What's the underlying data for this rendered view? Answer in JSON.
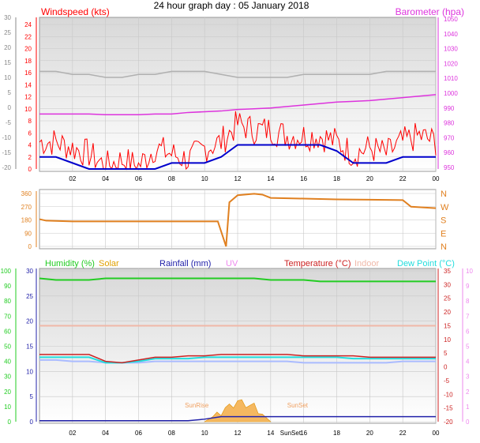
{
  "title": "24 hour graph day : 05 January 2018",
  "colors": {
    "wind": "#ff0000",
    "avg_wind": "#0000cc",
    "baro": "#dd33dd",
    "baro_left": "#888888",
    "wind_axis": "#ff0000",
    "dir": "#e08020",
    "humidity": "#22cc22",
    "solar": "#e0a000",
    "rain": "#2222aa",
    "uv": "#ee88ee",
    "temp": "#cc2222",
    "indoor": "#f0b8a8",
    "dew": "#22dddd",
    "cyan_line": "#aabbff",
    "grid": "#c8c8c8"
  },
  "x_labels": [
    "02",
    "04",
    "06",
    "08",
    "10",
    "12",
    "14",
    "16",
    "18",
    "20",
    "22",
    "00"
  ],
  "panel1": {
    "wind_label": "Windspeed (kts)",
    "baro_label": "Barometer (hpa)",
    "left_baro_ticks": [
      "30",
      "25",
      "20",
      "15",
      "10",
      "5",
      "0",
      "-5",
      "-10",
      "-15",
      "-20"
    ],
    "wind_ticks": [
      "24",
      "22",
      "20",
      "18",
      "16",
      "14",
      "12",
      "10",
      "8",
      "6",
      "4",
      "2",
      "0"
    ],
    "baro_ticks": [
      "1050",
      "1040",
      "1030",
      "1020",
      "1010",
      "1000",
      "990",
      "980",
      "970",
      "960",
      "950"
    ]
  },
  "panel2": {
    "left_ticks": [
      "360",
      "270",
      "180",
      "90",
      "0"
    ],
    "right_ticks": [
      "N",
      "W",
      "S",
      "E",
      "N"
    ]
  },
  "panel3": {
    "legend": {
      "humidity": "Humidity (%)",
      "solar": "Solar",
      "rain": "Rainfall (mm)",
      "uv": "UV",
      "temp": "Temperature (°C)",
      "indoor": "Indoor",
      "dew": "Dew Point (°C)"
    },
    "hum_ticks": [
      "100",
      "90",
      "80",
      "70",
      "60",
      "50",
      "40",
      "30",
      "20",
      "10",
      "0"
    ],
    "rain_ticks": [
      "30",
      "25",
      "20",
      "15",
      "10",
      "5",
      "0"
    ],
    "temp_ticks": [
      "35",
      "30",
      "25",
      "20",
      "15",
      "10",
      "5",
      "0",
      "-5",
      "-10",
      "-15",
      "-20"
    ],
    "uv_ticks": [
      "10",
      "9",
      "8",
      "7",
      "6",
      "5",
      "4",
      "3",
      "2",
      "1",
      "0"
    ],
    "sunrise": "SunRise",
    "sunset": "SunSet",
    "sunset_axis": "SunSet"
  },
  "chart_data": [
    {
      "type": "line",
      "title": "24 hour graph day : 05 January 2018",
      "ylabel": "Windspeed (kts)",
      "y2label": "Barometer (hpa)",
      "ylim": [
        0,
        25
      ],
      "y2lim": [
        950,
        1050
      ],
      "x": [
        0,
        1,
        2,
        3,
        4,
        5,
        6,
        7,
        8,
        9,
        10,
        11,
        12,
        13,
        14,
        15,
        16,
        17,
        18,
        19,
        20,
        21,
        22,
        23,
        24
      ],
      "series": [
        {
          "name": "Windspeed (kts)",
          "values": [
            4,
            4,
            3,
            2,
            0,
            1,
            0,
            3,
            2,
            1,
            3,
            4,
            7,
            6,
            6,
            5,
            5,
            5,
            4,
            2,
            3,
            2,
            4,
            5,
            4
          ]
        },
        {
          "name": "Barometer (hpa)",
          "values": [
            986,
            986,
            986,
            986,
            985.5,
            985.5,
            985.5,
            986,
            986,
            987,
            987.5,
            988,
            989,
            989.5,
            990,
            991,
            992,
            993,
            994,
            994.5,
            995,
            996,
            997,
            998,
            999
          ]
        }
      ],
      "extra_lines": {
        "avg_wind": [
          2,
          2,
          1,
          0,
          0,
          0,
          0,
          0,
          1,
          1,
          1,
          2,
          4,
          4,
          4,
          4,
          4,
          4,
          3,
          1,
          1,
          1,
          2,
          2,
          2
        ],
        "left_axis_grey": [
          12,
          12,
          11,
          11,
          10,
          10,
          11,
          11,
          12,
          12,
          12,
          11,
          10,
          10,
          10,
          10,
          11,
          11,
          11,
          11,
          11,
          12,
          12,
          12,
          12
        ]
      }
    },
    {
      "type": "line",
      "ylabel": "Wind direction",
      "ylim": [
        0,
        360
      ],
      "x": [
        0,
        0.4,
        2,
        4,
        6,
        8,
        10,
        10.8,
        11.3,
        11.5,
        12,
        13,
        13.5,
        14,
        16,
        18,
        20,
        22,
        22.5,
        24
      ],
      "series": [
        {
          "values": [
            185,
            175,
            170,
            170,
            170,
            170,
            170,
            170,
            0,
            300,
            348,
            358,
            352,
            330,
            325,
            320,
            318,
            315,
            270,
            260
          ]
        }
      ]
    },
    {
      "type": "line",
      "x": [
        0,
        1,
        2,
        3,
        4,
        5,
        6,
        7,
        8,
        9,
        10,
        11,
        12,
        13,
        14,
        15,
        16,
        17,
        18,
        19,
        20,
        21,
        22,
        23,
        24
      ],
      "series": [
        {
          "name": "Humidity (%)",
          "values": [
            95,
            94,
            94,
            94,
            95,
            95,
            95,
            95,
            95,
            95,
            95,
            95,
            95,
            95,
            94,
            94,
            94,
            93,
            93,
            93,
            93,
            93,
            93,
            93,
            93
          ]
        },
        {
          "name": "Temperature (°C)",
          "values": [
            4.5,
            4.5,
            4.5,
            4.5,
            2,
            1.5,
            2.5,
            3.5,
            3.5,
            4,
            4,
            4.5,
            4.5,
            4.5,
            4.5,
            4.5,
            4,
            4,
            4,
            4,
            3.5,
            3.5,
            3.5,
            3.5,
            3.5
          ]
        },
        {
          "name": "Dew Point (°C)",
          "values": [
            3.5,
            3.5,
            3.5,
            3.5,
            1.5,
            1.5,
            2,
            3,
            3,
            3,
            3.5,
            3.5,
            3.5,
            3.5,
            3.5,
            3.5,
            3.5,
            3.5,
            3.5,
            3,
            3,
            3,
            3,
            3,
            3
          ]
        },
        {
          "name": "Indoor",
          "values": [
            15,
            15,
            15,
            15,
            15,
            15,
            15,
            15,
            15,
            15,
            15,
            15,
            15,
            15,
            15,
            15,
            15,
            15,
            15,
            15,
            15,
            15,
            15,
            15,
            15
          ]
        },
        {
          "name": "Rainfall (mm)",
          "values": [
            0.2,
            0.2,
            0.2,
            0.2,
            0.2,
            0.2,
            0.2,
            0.2,
            0.2,
            0.2,
            0.5,
            1,
            1,
            1,
            1,
            1,
            1,
            1,
            1,
            1,
            1,
            1,
            1,
            1,
            1
          ]
        },
        {
          "name": "Solar",
          "values": [
            0,
            0,
            0,
            0,
            0,
            0,
            0,
            0,
            0,
            0,
            0,
            2,
            4,
            3,
            0,
            0,
            0,
            0,
            0,
            0,
            0,
            0,
            0,
            0,
            0
          ]
        }
      ],
      "extra_lines": {
        "light_blue": [
          2.5,
          2.5,
          2,
          2,
          1.5,
          1.5,
          1.5,
          2,
          2,
          2,
          2,
          2,
          2,
          2,
          2,
          2,
          1.5,
          1.5,
          1.5,
          1.5,
          1.5,
          1.5,
          2,
          2,
          2
        ]
      }
    }
  ]
}
